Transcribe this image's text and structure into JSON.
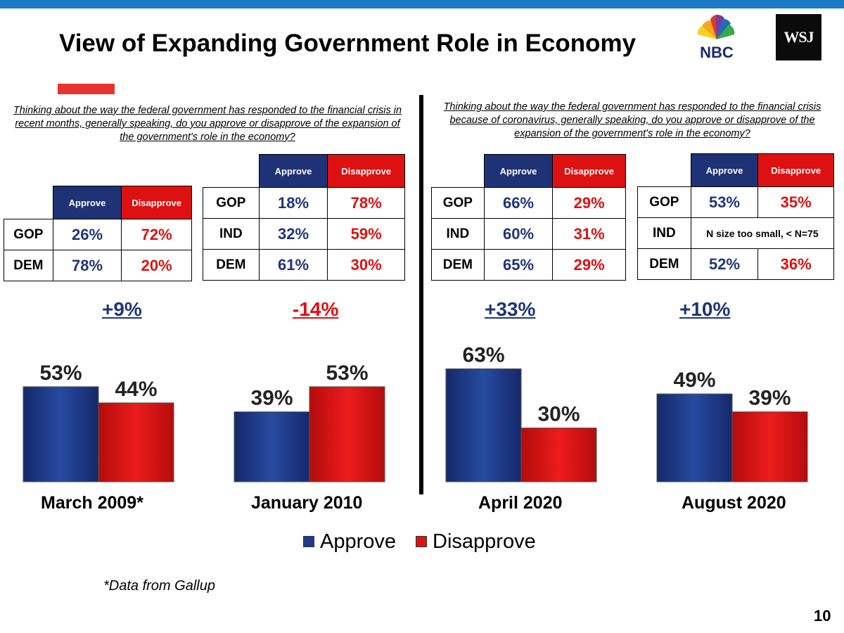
{
  "title": "View of Expanding Government Role in Economy",
  "logos": {
    "nbc": "NBC",
    "wsj": "WSJ"
  },
  "question_left": "Thinking about the way the federal government has responded to the financial crisis in recent months, generally speaking, do you approve or disapprove of the expansion of the government's role in the economy?",
  "question_right": "Thinking about the way the federal government has responded to the financial crisis because of coronavirus, generally speaking, do you approve or disapprove of the expansion of the government's role in the economy?",
  "tables": [
    {
      "approve_label": "Approve",
      "disapprove_label": "Disapprove",
      "rows": [
        {
          "party": "GOP",
          "approve": "26%",
          "disapprove": "72%"
        },
        {
          "party": "DEM",
          "approve": "78%",
          "disapprove": "20%"
        }
      ]
    },
    {
      "approve_label": "Approve",
      "disapprove_label": "Disapprove",
      "rows": [
        {
          "party": "GOP",
          "approve": "18%",
          "disapprove": "78%"
        },
        {
          "party": "IND",
          "approve": "32%",
          "disapprove": "59%"
        },
        {
          "party": "DEM",
          "approve": "61%",
          "disapprove": "30%"
        }
      ]
    },
    {
      "approve_label": "Approve",
      "disapprove_label": "Disapprove",
      "rows": [
        {
          "party": "GOP",
          "approve": "66%",
          "disapprove": "29%"
        },
        {
          "party": "IND",
          "approve": "60%",
          "disapprove": "31%"
        },
        {
          "party": "DEM",
          "approve": "65%",
          "disapprove": "29%"
        }
      ]
    },
    {
      "approve_label": "Approve",
      "disapprove_label": "Disapprove",
      "rows": [
        {
          "party": "GOP",
          "approve": "53%",
          "disapprove": "35%"
        },
        {
          "party": "IND",
          "note": "N size too small, < N=75"
        },
        {
          "party": "DEM",
          "approve": "52%",
          "disapprove": "36%"
        }
      ]
    }
  ],
  "shifts": [
    "+9%",
    "-14%",
    "+33%",
    "+10%"
  ],
  "footnote": "*Data from Gallup",
  "page_number": "10",
  "colors": {
    "approve": "#1e3578",
    "disapprove": "#dd1111",
    "approve_bar": "#1f3a8a",
    "disapprove_bar": "#d81414",
    "shift_positive": "#1e3578",
    "shift_negative": "#dd1111",
    "top_bar": "#1b78c2"
  },
  "chart_data": {
    "type": "bar",
    "categories": [
      "March 2009*",
      "January 2010",
      "April 2020",
      "August 2020"
    ],
    "series": [
      {
        "name": "Approve",
        "values": [
          53,
          39,
          63,
          49
        ]
      },
      {
        "name": "Disapprove",
        "values": [
          44,
          53,
          30,
          39
        ]
      }
    ],
    "value_suffix": "%",
    "ylim": [
      0,
      70
    ],
    "grid": false,
    "legend": "bottom"
  }
}
